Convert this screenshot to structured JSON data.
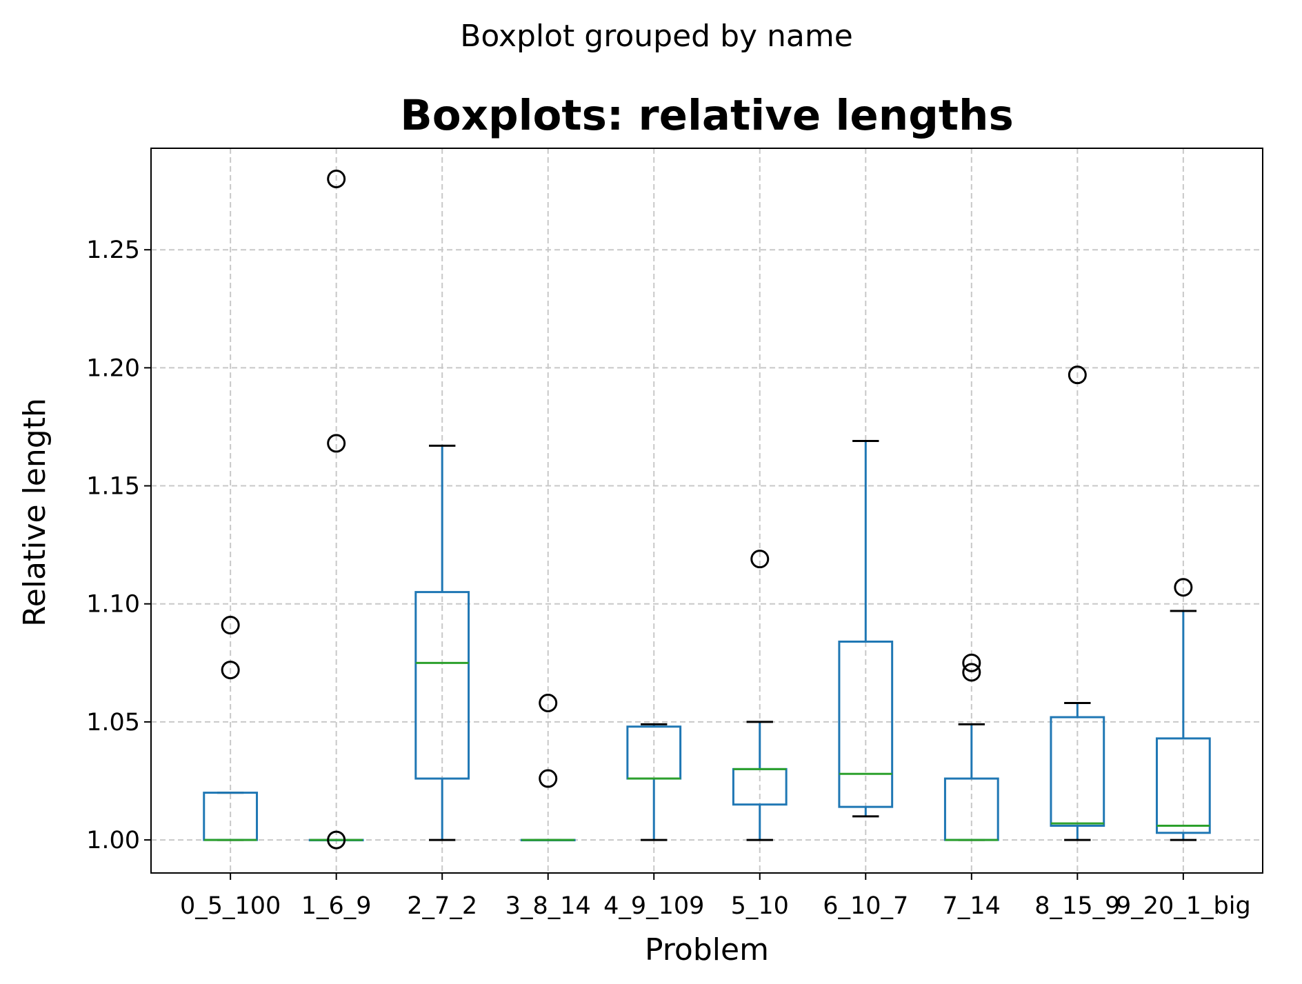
{
  "chart_data": {
    "type": "boxplot",
    "suptitle": "Boxplot grouped by name",
    "title": "Boxplots: relative lengths",
    "xlabel": "Problem",
    "ylabel": "Relative length",
    "ylim": [
      0.986,
      1.293
    ],
    "yticks": [
      "1.00",
      "1.05",
      "1.10",
      "1.15",
      "1.20",
      "1.25"
    ],
    "grid": true,
    "categories": [
      "0_5_100",
      "1_6_9",
      "2_7_2",
      "3_8_14",
      "4_9_109",
      "5_10",
      "6_10_7",
      "7_14",
      "8_15_9",
      "9_20_1_big"
    ],
    "boxes": [
      {
        "whislo": 1.0,
        "q1": 1.0,
        "med": 1.0,
        "q3": 1.02,
        "whishi": 1.02,
        "fliers": [
          1.072,
          1.091
        ]
      },
      {
        "whislo": 1.0,
        "q1": 1.0,
        "med": 1.0,
        "q3": 1.0,
        "whishi": 1.0,
        "fliers": [
          1.0,
          1.168,
          1.28
        ]
      },
      {
        "whislo": 1.0,
        "q1": 1.026,
        "med": 1.075,
        "q3": 1.105,
        "whishi": 1.167,
        "fliers": []
      },
      {
        "whislo": 1.0,
        "q1": 1.0,
        "med": 1.0,
        "q3": 1.0,
        "whishi": 1.0,
        "fliers": [
          1.026,
          1.058
        ]
      },
      {
        "whislo": 1.0,
        "q1": 1.026,
        "med": 1.026,
        "q3": 1.048,
        "whishi": 1.049,
        "fliers": []
      },
      {
        "whislo": 1.0,
        "q1": 1.015,
        "med": 1.03,
        "q3": 1.03,
        "whishi": 1.05,
        "fliers": [
          1.119
        ]
      },
      {
        "whislo": 1.01,
        "q1": 1.014,
        "med": 1.028,
        "q3": 1.084,
        "whishi": 1.169,
        "fliers": []
      },
      {
        "whislo": 1.0,
        "q1": 1.0,
        "med": 1.0,
        "q3": 1.026,
        "whishi": 1.049,
        "fliers": [
          1.071,
          1.075
        ]
      },
      {
        "whislo": 1.0,
        "q1": 1.006,
        "med": 1.007,
        "q3": 1.052,
        "whishi": 1.058,
        "fliers": [
          1.197
        ]
      },
      {
        "whislo": 1.0,
        "q1": 1.003,
        "med": 1.006,
        "q3": 1.043,
        "whishi": 1.097,
        "fliers": [
          1.107
        ]
      }
    ],
    "colors": {
      "box": "#1f77b4",
      "median": "#2ca02c",
      "whisker": "#1f77b4",
      "cap": "#000000",
      "flier": "#000000",
      "grid": "#c8c8c8"
    }
  }
}
